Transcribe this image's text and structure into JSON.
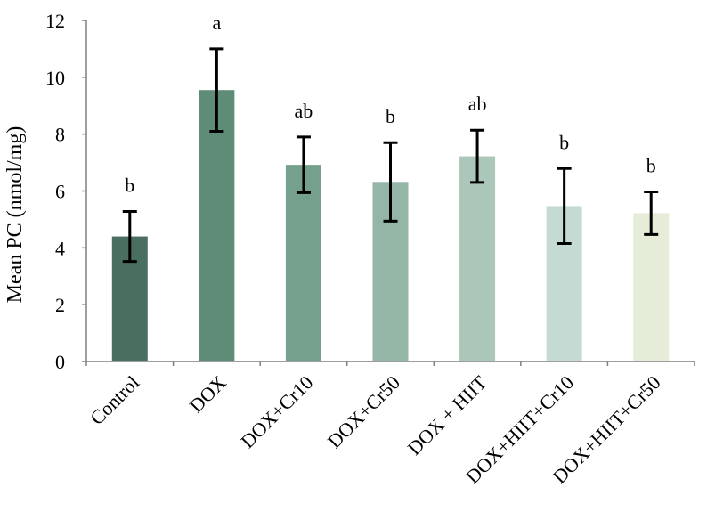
{
  "chart_data": {
    "type": "bar",
    "title": "",
    "xlabel": "",
    "ylabel": "Mean PC (nmol/mg)",
    "ylim": [
      0,
      12
    ],
    "yticks": [
      0,
      2,
      4,
      6,
      8,
      10,
      12
    ],
    "grid": false,
    "legend": "none",
    "categories": [
      "Control",
      "DOX",
      "DOX+Cr10",
      "DOX+Cr50",
      "DOX + HIIT",
      "DOX+HIIT+Cr10",
      "DOX+HIIT+Cr50"
    ],
    "values": [
      4.4,
      9.55,
      6.92,
      6.32,
      7.22,
      5.47,
      5.22
    ],
    "error": [
      0.88,
      1.45,
      0.98,
      1.38,
      0.92,
      1.32,
      0.75
    ],
    "significance": [
      "b",
      "a",
      "ab",
      "b",
      "ab",
      "b",
      "b"
    ],
    "colors": [
      "#4a6e5f",
      "#5e8c77",
      "#74a08c",
      "#93b6a6",
      "#abc7b9",
      "#c4dad2",
      "#e5edd8"
    ],
    "axis_color": "#7f7f7f",
    "error_bar_color": "#000000"
  }
}
